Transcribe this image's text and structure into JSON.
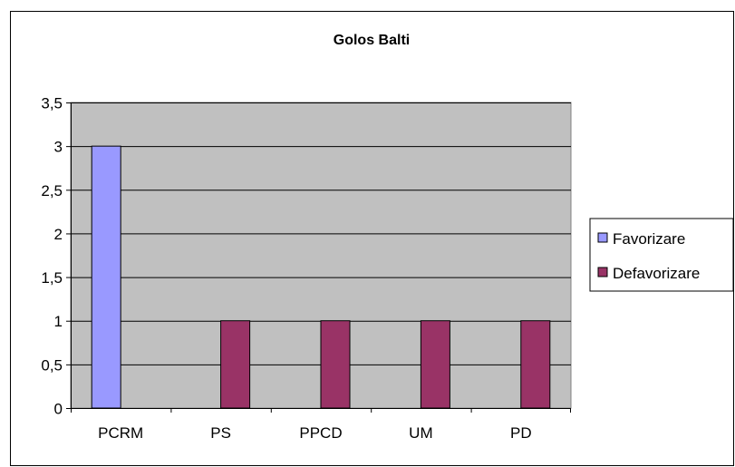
{
  "chart_data": {
    "type": "bar",
    "title": "Golos Balti",
    "categories": [
      "PCRM",
      "PS",
      "PPCD",
      "UM",
      "PD"
    ],
    "series": [
      {
        "name": "Favorizare",
        "values": [
          3,
          0,
          0,
          0,
          0
        ],
        "color": "#9999FF"
      },
      {
        "name": "Defavorizare",
        "values": [
          0,
          1,
          1,
          1,
          1
        ],
        "color": "#993366"
      }
    ],
    "ylim": [
      0,
      3.5
    ],
    "yticks": [
      "0",
      "0,5",
      "1",
      "1,5",
      "2",
      "2,5",
      "3",
      "3,5"
    ],
    "ytick_values": [
      0,
      0.5,
      1,
      1.5,
      2,
      2.5,
      3,
      3.5
    ],
    "grid": true,
    "plot_background": "#C0C0C0",
    "legend_position": "right"
  }
}
